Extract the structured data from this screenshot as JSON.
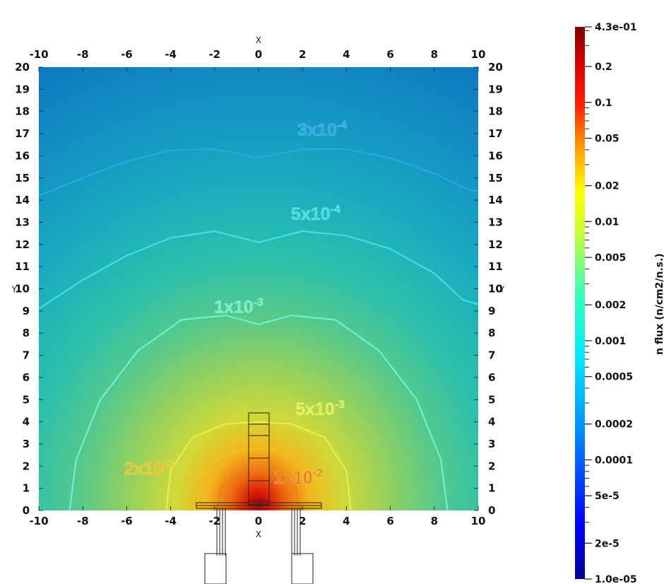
{
  "chart_data": {
    "type": "heatmap",
    "x_axis": {
      "label": "X",
      "range": [
        -10,
        10
      ],
      "ticks": [
        -10,
        -8,
        -6,
        -4,
        -2,
        0,
        2,
        4,
        6,
        8,
        10
      ],
      "tick_labels": [
        "-10",
        "-8",
        "-6",
        "-4",
        "-2",
        "0",
        "2",
        "4",
        "6",
        "8",
        "10"
      ]
    },
    "y_axis": {
      "label": "Y",
      "range": [
        0,
        20
      ],
      "ticks": [
        0,
        1,
        2,
        3,
        4,
        5,
        6,
        7,
        8,
        9,
        10,
        11,
        12,
        13,
        14,
        15,
        16,
        17,
        18,
        19,
        20
      ],
      "tick_labels": [
        "0",
        "1",
        "2",
        "3",
        "4",
        "5",
        "6",
        "7",
        "8",
        "9",
        "10",
        "11",
        "12",
        "13",
        "14",
        "15",
        "16",
        "17",
        "18",
        "19",
        "20"
      ]
    },
    "colorbar": {
      "title": "n flux (n/cm2/n.s.)",
      "scale": "log",
      "range": [
        1e-05,
        0.43
      ],
      "tick_values": [
        0.43,
        0.2,
        0.1,
        0.05,
        0.02,
        0.01,
        0.005,
        0.002,
        0.001,
        0.0005,
        0.0002,
        0.0001,
        5e-05,
        2e-05,
        1e-05
      ],
      "tick_labels": [
        "4.3e-01",
        "0.2",
        "0.1",
        "0.05",
        "0.02",
        "0.01",
        "0.005",
        "0.002",
        "0.001",
        "0.0005",
        "0.0002",
        "0.0001",
        "5e-5",
        "2e-5",
        "1.0e-05"
      ]
    },
    "contours": [
      {
        "value": 0.0003,
        "mantissa": "3x10",
        "exponent": "-4",
        "label_at": [
          2.9,
          17.2
        ],
        "color": "#2aa7e3",
        "x": [
          -10,
          -8,
          -6,
          -4,
          -2,
          0,
          2,
          4,
          6,
          8,
          9.5,
          10
        ],
        "y": [
          14.2,
          15.0,
          15.75,
          16.25,
          16.3,
          15.9,
          16.3,
          16.3,
          15.9,
          15.2,
          14.5,
          14.4
        ]
      },
      {
        "value": 0.0005,
        "mantissa": "5x10",
        "exponent": "-4",
        "label_at": [
          2.6,
          13.4
        ],
        "color": "#3fdfe8",
        "x": [
          -10,
          -8,
          -6,
          -4,
          -2,
          0,
          2,
          4,
          6,
          8,
          9.3,
          10
        ],
        "y": [
          9.1,
          10.4,
          11.5,
          12.3,
          12.6,
          12.1,
          12.6,
          12.4,
          11.8,
          10.7,
          9.5,
          9.3
        ]
      },
      {
        "value": 0.001,
        "mantissa": "1x10",
        "exponent": "-3",
        "label_at": [
          -0.9,
          9.2
        ],
        "color": "#6ef0cf",
        "x": [
          -8.6,
          -8.3,
          -7.2,
          -5.5,
          -3.5,
          -1.5,
          0,
          1.5,
          3.5,
          5.5,
          7.2,
          8.3,
          8.6
        ],
        "y": [
          0,
          2.3,
          5.0,
          7.2,
          8.6,
          8.8,
          8.4,
          8.8,
          8.6,
          7.2,
          5.0,
          2.3,
          0
        ]
      },
      {
        "value": 0.005,
        "mantissa": "5x10",
        "exponent": "-3",
        "label_at": [
          2.8,
          4.6
        ],
        "color": "#e6ee4a",
        "x": [
          -4.2,
          -4.0,
          -3.0,
          -1.5,
          0,
          1.5,
          3.0,
          4.0,
          4.2
        ],
        "y": [
          0,
          1.8,
          3.3,
          3.9,
          4.0,
          3.9,
          3.3,
          1.8,
          0
        ]
      },
      {
        "value": 0.02,
        "mantissa": "2x10",
        "exponent": "-2",
        "label_at": [
          -5.0,
          1.9
        ],
        "color": "#f2c11a",
        "x": [
          -2.8,
          -2.6,
          -1.8,
          -1.0,
          0,
          1.0,
          1.8,
          2.6,
          2.8
        ],
        "y": [
          0,
          1.5,
          2.4,
          2.7,
          2.8,
          2.7,
          2.4,
          1.5,
          0
        ]
      },
      {
        "value": 0.01,
        "mantissa": "1x10",
        "exponent": "-2",
        "label_at": [
          1.8,
          1.5
        ],
        "color": "#e7801e",
        "x": [
          -1.9,
          -1.7,
          -1.1,
          0,
          1.1,
          1.7,
          1.9
        ],
        "y": [
          0,
          1.0,
          1.6,
          1.9,
          1.6,
          1.0,
          0
        ]
      }
    ]
  }
}
